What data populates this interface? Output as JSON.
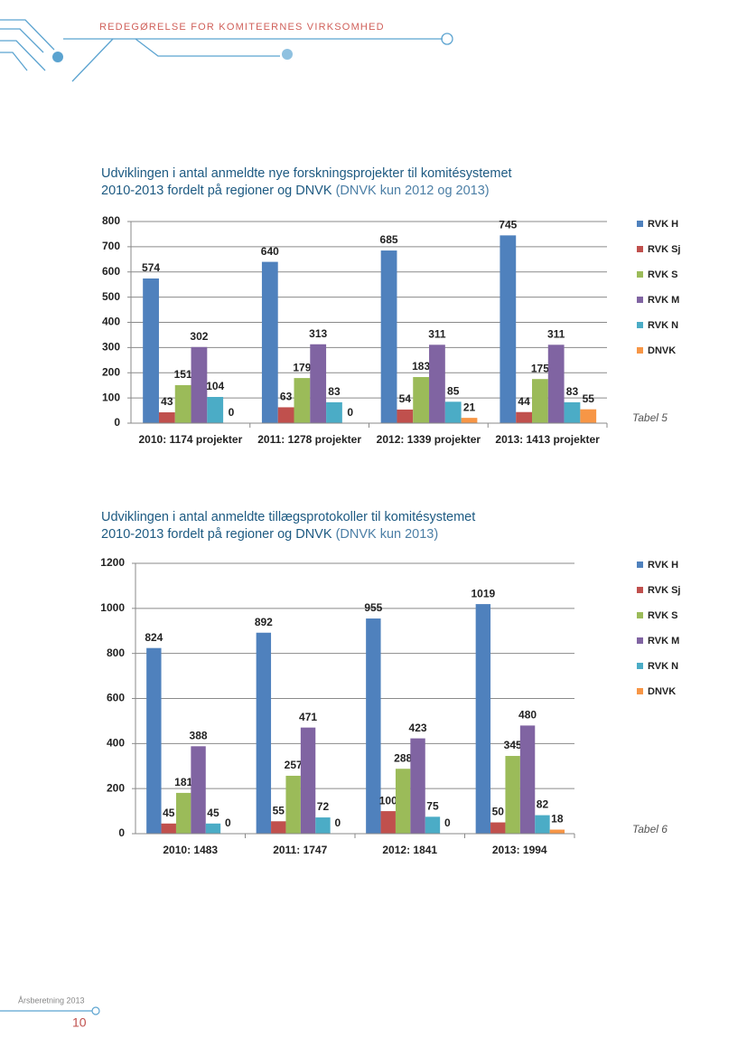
{
  "header": "REDEGØRELSE FOR KOMITEERNES VIRKSOMHED",
  "chart_data": [
    {
      "type": "bar",
      "title": [
        "Udviklingen i antal anmeldte nye forskningsprojekter til komitésystemet",
        "2010-2013 fordelt på regioner og DNVK"
      ],
      "subtitle": "(DNVK kun 2012 og 2013)",
      "caption": "Tabel 5",
      "categories": [
        "2010: 1174 projekter",
        "2011: 1278 projekter",
        "2012: 1339 projekter",
        "2013: 1413 projekter"
      ],
      "series": [
        {
          "name": "RVK H",
          "color": "#4f81bd",
          "values": [
            574,
            640,
            685,
            745
          ]
        },
        {
          "name": "RVK Sj",
          "color": "#c0504d",
          "values": [
            43,
            63,
            54,
            44
          ]
        },
        {
          "name": "RVK S",
          "color": "#9bbb59",
          "values": [
            151,
            179,
            183,
            175
          ]
        },
        {
          "name": "RVK M",
          "color": "#8064a2",
          "values": [
            302,
            313,
            311,
            311
          ]
        },
        {
          "name": "RVK N",
          "color": "#4bacc6",
          "values": [
            104,
            83,
            85,
            83
          ]
        },
        {
          "name": "DNVK",
          "color": "#f79646",
          "values": [
            0,
            0,
            21,
            55
          ]
        }
      ],
      "ylim": [
        0,
        800
      ],
      "yticks": [
        0,
        100,
        200,
        300,
        400,
        500,
        600,
        700,
        800
      ],
      "grid": true,
      "legend": "right"
    },
    {
      "type": "bar",
      "title": [
        "Udviklingen i antal anmeldte tillægsprotokoller til komitésystemet",
        "2010-2013 fordelt på regioner og DNVK"
      ],
      "subtitle": "(DNVK kun 2013)",
      "caption": "Tabel 6",
      "categories": [
        "2010: 1483",
        "2011: 1747",
        "2012: 1841",
        "2013: 1994"
      ],
      "series": [
        {
          "name": "RVK H",
          "color": "#4f81bd",
          "values": [
            824,
            892,
            955,
            1019
          ]
        },
        {
          "name": "RVK Sj",
          "color": "#c0504d",
          "values": [
            45,
            55,
            100,
            50
          ]
        },
        {
          "name": "RVK S",
          "color": "#9bbb59",
          "values": [
            181,
            257,
            288,
            345
          ]
        },
        {
          "name": "RVK M",
          "color": "#8064a2",
          "values": [
            388,
            471,
            423,
            480
          ]
        },
        {
          "name": "RVK N",
          "color": "#4bacc6",
          "values": [
            45,
            72,
            75,
            82
          ]
        },
        {
          "name": "DNVK",
          "color": "#f79646",
          "values": [
            0,
            0,
            0,
            18
          ]
        }
      ],
      "ylim": [
        0,
        1200
      ],
      "yticks": [
        0,
        200,
        400,
        600,
        800,
        1000,
        1200
      ],
      "grid": true,
      "legend": "right"
    }
  ],
  "footer": {
    "report": "Årsberetning 2013",
    "page": "10"
  }
}
